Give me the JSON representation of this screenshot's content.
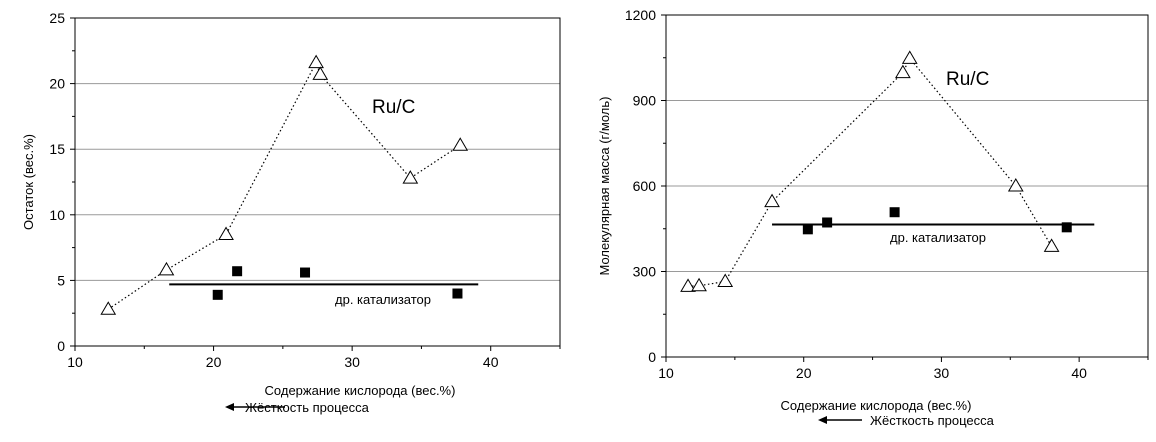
{
  "chart_data": [
    {
      "type": "scatter",
      "xlabel": "Содержание кислорода (вес.%)",
      "ylabel": "Остаток (вес.%)",
      "xlim": [
        10,
        45
      ],
      "ylim": [
        0,
        25
      ],
      "xticks": [
        10,
        20,
        30,
        40
      ],
      "yticks": [
        0,
        5,
        10,
        15,
        20,
        25
      ],
      "grid": "horizontal",
      "series": [
        {
          "name": "Ru/C",
          "marker": "open-triangle",
          "line": "dotted",
          "points": [
            [
              12.4,
              2.8
            ],
            [
              16.6,
              5.8
            ],
            [
              20.9,
              8.5
            ],
            [
              27.4,
              21.6
            ],
            [
              27.7,
              20.7
            ],
            [
              34.2,
              12.8
            ],
            [
              37.8,
              15.3
            ]
          ]
        },
        {
          "name": "др. катализатор",
          "marker": "filled-square",
          "line": "none",
          "points": [
            [
              20.3,
              3.9
            ],
            [
              21.7,
              5.7
            ],
            [
              26.6,
              5.6
            ],
            [
              37.6,
              4.0
            ]
          ]
        }
      ],
      "reference_line": {
        "y": 4.7,
        "x_range": [
          16.8,
          39.1
        ]
      },
      "annotation": "Жёсткость процесса",
      "annotation_arrow": "left"
    },
    {
      "type": "scatter",
      "xlabel": "Содержание кислорода (вес.%)",
      "ylabel": "Молекулярная масса (г/моль)",
      "xlim": [
        10,
        45
      ],
      "ylim": [
        0,
        1200
      ],
      "xticks": [
        10,
        20,
        30,
        40
      ],
      "yticks": [
        0,
        300,
        600,
        900,
        1200
      ],
      "grid": "horizontal",
      "series": [
        {
          "name": "Ru/C",
          "marker": "open-triangle",
          "line": "dotted",
          "points": [
            [
              11.6,
              248
            ],
            [
              12.4,
              250
            ],
            [
              14.3,
              265
            ],
            [
              17.7,
              545
            ],
            [
              27.2,
              998
            ],
            [
              27.7,
              1048
            ],
            [
              35.4,
              600
            ],
            [
              38.0,
              388
            ]
          ]
        },
        {
          "name": "др. катализатор",
          "marker": "filled-square",
          "line": "none",
          "points": [
            [
              20.3,
              448
            ],
            [
              21.7,
              472
            ],
            [
              26.6,
              508
            ],
            [
              39.1,
              455
            ]
          ]
        }
      ],
      "reference_line": {
        "y": 465,
        "x_range": [
          17.7,
          41.1
        ]
      },
      "annotation": "Жёсткость процесса",
      "annotation_arrow": "left"
    }
  ]
}
